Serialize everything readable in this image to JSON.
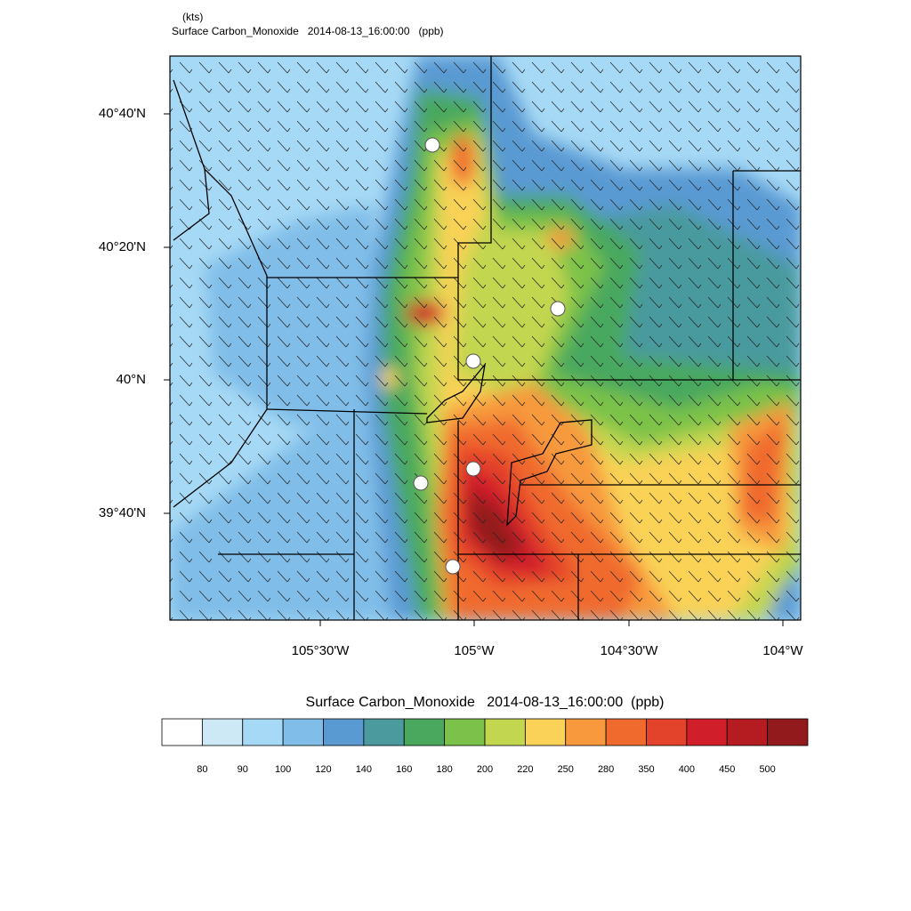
{
  "header": {
    "units": "(kts)",
    "title": "Surface Carbon_Monoxide   2014-08-13_16:00:00   (ppb)"
  },
  "map": {
    "lat_labels": [
      "40°40'N",
      "40°20'N",
      "40°N",
      "39°40'N"
    ],
    "lon_labels": [
      "105°30'W",
      "105°W",
      "104°30'W",
      "104°W"
    ]
  },
  "colorbar": {
    "title": "Surface Carbon_Monoxide   2014-08-13_16:00:00  (ppb)",
    "levels": [
      80,
      90,
      100,
      120,
      140,
      160,
      180,
      200,
      220,
      250,
      280,
      350,
      400,
      450,
      500
    ],
    "colors": [
      "#ffffff",
      "#cde9f6",
      "#a6d9f5",
      "#80bde8",
      "#5a9ad3",
      "#4a9a9e",
      "#4aa85e",
      "#7cc24a",
      "#c3d64f",
      "#f9d257",
      "#f7993c",
      "#f06a2e",
      "#e4432b",
      "#d01f2a",
      "#b41c22",
      "#921a1c"
    ]
  }
}
